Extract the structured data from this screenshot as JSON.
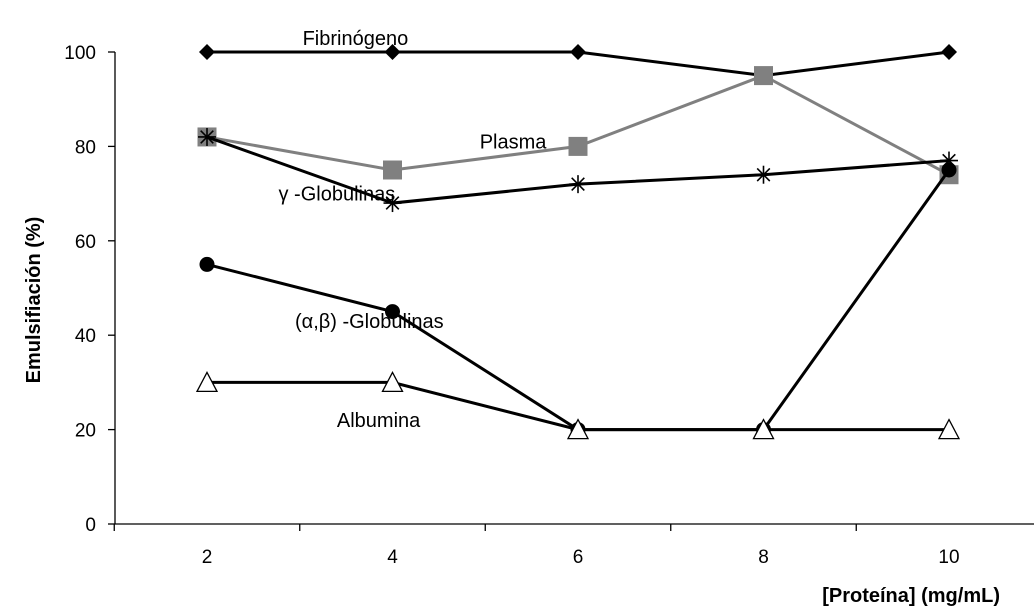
{
  "chart_data": {
    "type": "line",
    "title": "",
    "xlabel": "[Proteína] (mg/mL)",
    "ylabel": "Emulsifiación (%)",
    "xlim": [
      1,
      11
    ],
    "ylim": [
      0,
      100
    ],
    "x_ticks": [
      2,
      4,
      6,
      8,
      10
    ],
    "y_ticks": [
      0,
      20,
      40,
      60,
      80,
      100
    ],
    "grid": false,
    "legend": "none",
    "series": [
      {
        "name": "Fibrinógeno",
        "marker": "diamond",
        "color": "#000000",
        "x": [
          2,
          4,
          6,
          8,
          10
        ],
        "y": [
          100,
          100,
          100,
          95,
          100
        ]
      },
      {
        "name": "Plasma",
        "marker": "square",
        "color": "#808080",
        "x": [
          2,
          4,
          6,
          8,
          10
        ],
        "y": [
          82,
          75,
          80,
          95,
          74
        ]
      },
      {
        "name": "γ -Globulinas",
        "marker": "asterisk",
        "color": "#000000",
        "x": [
          2,
          4,
          6,
          8,
          10
        ],
        "y": [
          82,
          68,
          72,
          74,
          77
        ]
      },
      {
        "name": "(α,β) -Globulinas",
        "marker": "circle",
        "color": "#000000",
        "x": [
          2,
          4,
          6,
          8,
          10
        ],
        "y": [
          55,
          45,
          20,
          20,
          75
        ]
      },
      {
        "name": "Albumina",
        "marker": "triangle",
        "color": "#000000",
        "x": [
          2,
          4,
          6,
          8,
          10
        ],
        "y": [
          30,
          30,
          20,
          20,
          20
        ]
      }
    ],
    "annotations": [
      {
        "text": "Fibrinógeno",
        "x": 3.6,
        "y": 103
      },
      {
        "text": "Plasma",
        "x": 5.3,
        "y": 81
      },
      {
        "text": "γ -Globulinas",
        "x": 3.4,
        "y": 70
      },
      {
        "text": "(α,β) -Globulinas",
        "x": 3.75,
        "y": 43
      },
      {
        "text": "Albumina",
        "x": 3.85,
        "y": 22
      }
    ]
  }
}
